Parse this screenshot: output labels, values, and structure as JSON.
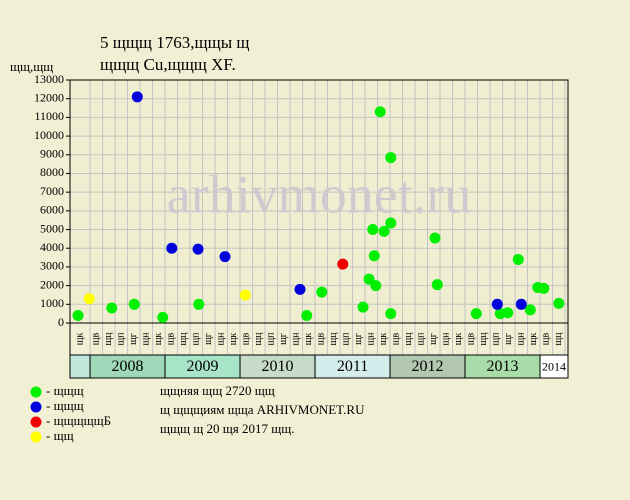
{
  "chart_data": {
    "type": "scatter",
    "title": "5 щщщ 1763,щщы щ",
    "subtitle": "щщщ Cu,щщщ XF.",
    "y_label": "щщ,щщ",
    "watermark": "arhivmonet.ru",
    "xlim": [
      2007.733,
      2014.373
    ],
    "ylim": [
      0,
      13000
    ],
    "yticks": [
      0,
      1000,
      2000,
      3000,
      4000,
      5000,
      6000,
      7000,
      8000,
      9000,
      10000,
      11000,
      12000,
      13000
    ],
    "grid": true,
    "x_labels": [
      "щк",
      "щв",
      "щц",
      "щп",
      "щг",
      "щн",
      "щк",
      "щв",
      "щц",
      "щп",
      "щг",
      "щн",
      "щк",
      "щв",
      "щц",
      "щп",
      "щг",
      "щн",
      "щк",
      "щв",
      "щц",
      "щп",
      "щг",
      "щн",
      "щк",
      "щв",
      "щц",
      "щп",
      "щг",
      "щн",
      "щк",
      "щв",
      "щц",
      "щп",
      "щг",
      "щн",
      "щк",
      "щв",
      "щц"
    ],
    "year_bands": [
      "2008",
      "2009",
      "2010",
      "2011",
      "2012",
      "2013",
      "2014"
    ],
    "band_colors": [
      "#9fd8b8",
      "#a8e4c8",
      "#c6dcc8",
      "#d4ecec",
      "#b2c8b0",
      "#a8dca8",
      "#ffffff"
    ],
    "series": [
      {
        "name": "- щщщ",
        "color": "#00ee00",
        "x": [
          2007.84,
          2008.29,
          2008.59,
          2008.97,
          2009.45,
          2010.89,
          2011.09,
          2011.64,
          2011.72,
          2011.77,
          2011.79,
          2011.81,
          2011.87,
          2011.92,
          2012.01,
          2012.01,
          2012.01,
          2012.6,
          2012.63,
          2013.15,
          2013.47,
          2013.57,
          2013.71,
          2013.87,
          2013.97,
          2014.05,
          2014.25
        ],
        "values": [
          400,
          800,
          1000,
          300,
          1000,
          400,
          1650,
          850,
          2350,
          5000,
          3600,
          2000,
          11300,
          4900,
          5350,
          8850,
          500,
          4550,
          2050,
          500,
          500,
          550,
          3400,
          700,
          1900,
          1850,
          1050
        ]
      },
      {
        "name": "- щщщ",
        "color": "#0000dd",
        "x": [
          2008.63,
          2009.09,
          2009.44,
          2009.8,
          2010.8,
          2013.43,
          2013.75
        ],
        "values": [
          12100,
          4000,
          3950,
          3550,
          1800,
          1000,
          1000
        ]
      },
      {
        "name": "- щщщщщБ",
        "color": "#ee0000",
        "x": [
          2011.37
        ],
        "values": [
          3150
        ]
      },
      {
        "name": "- щщ",
        "color": "#ffff00",
        "x": [
          2007.99,
          2010.07
        ],
        "values": [
          1300,
          1500
        ]
      }
    ],
    "notes": [
      "щщняя щщ 2720 щщ",
      "щ щщщиям щща ARHIVMONET.RU",
      "щщщ щ 20 щя 2017 щщ."
    ]
  }
}
